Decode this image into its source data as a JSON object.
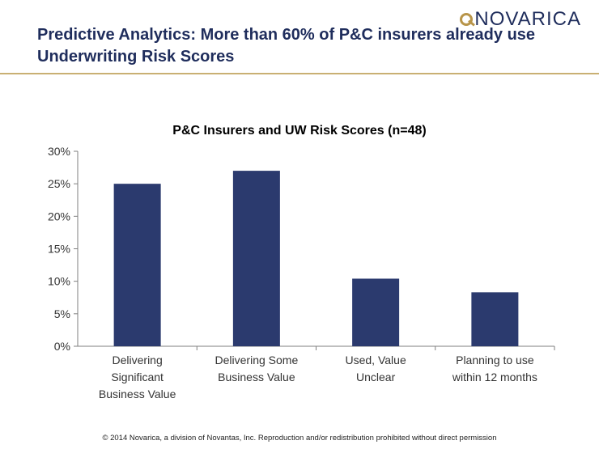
{
  "logo": {
    "text": "NOVARICA"
  },
  "slide": {
    "title": "Predictive Analytics: More than 60% of P&C insurers already use Underwriting Risk Scores"
  },
  "chart_data": {
    "type": "bar",
    "title": "P&C Insurers and UW Risk Scores (n=48)",
    "categories": [
      [
        "Delivering",
        "Significant",
        "Business Value"
      ],
      [
        "Delivering Some",
        "Business Value"
      ],
      [
        "Used, Value",
        "Unclear"
      ],
      [
        "Planning to use",
        "within 12 months"
      ]
    ],
    "values": [
      25,
      27,
      10.4,
      8.3
    ],
    "ylim": [
      0,
      30
    ],
    "yticks": [
      0,
      5,
      10,
      15,
      20,
      25,
      30
    ],
    "ytick_format": "%",
    "grid": false,
    "bar_color": "#2b3a6e"
  },
  "footer": "© 2014 Novarica, a division of Novantas, Inc. Reproduction and/or redistribution prohibited without direct permission"
}
